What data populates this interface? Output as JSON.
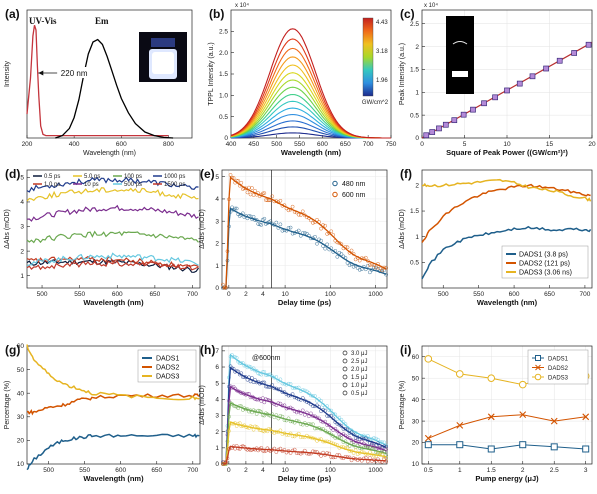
{
  "chart_data": [
    {
      "panel": "(a)",
      "type": "line",
      "xlabel": "Wavelength (nm)",
      "ylabel": "Intensity",
      "xlim": [
        200,
        900
      ],
      "xticks": [
        200,
        400,
        600,
        800
      ],
      "series": [
        {
          "name": "UV-Vis",
          "color": "#c4343c",
          "x": [
            200,
            215,
            225,
            232,
            238,
            244,
            250,
            258,
            268,
            280,
            300,
            340,
            380,
            420,
            500,
            600,
            700,
            800
          ],
          "y": [
            0.2,
            0.5,
            0.85,
            0.94,
            0.9,
            0.6,
            0.35,
            0.1,
            0.03,
            0.02,
            0.02,
            0.02,
            0.02,
            0.02,
            0.02,
            0.02,
            0.02,
            0.02
          ]
        },
        {
          "name": "Em",
          "color": "#000000",
          "x": [
            320,
            350,
            380,
            400,
            420,
            440,
            460,
            480,
            500,
            520,
            540,
            560,
            580,
            600,
            630,
            660,
            700,
            740,
            780,
            820
          ],
          "y": [
            0.0,
            0.02,
            0.08,
            0.17,
            0.32,
            0.52,
            0.7,
            0.8,
            0.82,
            0.78,
            0.68,
            0.56,
            0.44,
            0.33,
            0.21,
            0.12,
            0.05,
            0.02,
            0.005,
            0.0
          ]
        }
      ],
      "annotations": [
        "UV-Vis",
        "Em",
        "220 nm"
      ]
    },
    {
      "panel": "(b)",
      "type": "line",
      "xlabel": "Wavelength (nm)",
      "ylabel": "TPPL Intensity (a.u.)",
      "xlim": [
        400,
        750
      ],
      "xticks": [
        400,
        450,
        500,
        550,
        600,
        650,
        700,
        750
      ],
      "ylim": [
        0,
        30000
      ],
      "yticks": [
        0,
        5000,
        10000,
        15000,
        20000,
        25000
      ],
      "ytick_labels": [
        "0",
        "0.5",
        "1.0",
        "1.5",
        "2.0",
        "2.5"
      ],
      "exponent_label": "x 10⁴",
      "peak_wavelength": 535,
      "width_nm": 70,
      "peaks": [
        1200,
        2600,
        4000,
        5500,
        7000,
        8600,
        10200,
        11900,
        13600,
        15300,
        17100,
        19000,
        21000,
        23200,
        25600
      ],
      "colorbar": {
        "title": "GW/cm^2",
        "ticks": [
          "4.43",
          "3.18",
          "1.96"
        ]
      }
    },
    {
      "panel": "(c)",
      "type": "scatter",
      "xlabel": "Square of Peak Power ((GW/cm²)²)",
      "ylabel": "Peak Intensity (a.u.)",
      "xlim": [
        0,
        20
      ],
      "xticks": [
        0,
        5,
        10,
        15,
        20
      ],
      "ylim": [
        0,
        2.8
      ],
      "yticks": [
        0,
        0.5,
        1,
        1.5,
        2,
        2.5
      ],
      "exponent_label": "x 10⁴",
      "x": [
        0.5,
        1.2,
        2.0,
        2.8,
        3.8,
        4.9,
        6.0,
        7.3,
        8.6,
        10.0,
        11.5,
        13.0,
        14.6,
        16.2,
        17.9,
        19.6
      ],
      "y": [
        0.06,
        0.13,
        0.21,
        0.29,
        0.39,
        0.51,
        0.62,
        0.76,
        0.89,
        1.04,
        1.19,
        1.35,
        1.52,
        1.69,
        1.86,
        2.04
      ],
      "fit": {
        "slope": 0.1045,
        "intercept": 0.0
      }
    },
    {
      "panel": "(d)",
      "type": "line",
      "xlabel": "Wavelength (nm)",
      "ylabel": "ΔAbs (mOD)",
      "xlim": [
        480,
        710
      ],
      "xticks": [
        500,
        550,
        600,
        650,
        700
      ],
      "ylim": [
        0.5,
        5.3
      ],
      "yticks": [
        1,
        2,
        3,
        4,
        5
      ],
      "series": [
        {
          "name": "0.5 ps",
          "color": "#0a1a3a",
          "base": 1.5,
          "amp": 0.2,
          "tilt": -0.3
        },
        {
          "name": "1.0 ps",
          "color": "#c23b22",
          "base": 1.6,
          "amp": 0.2,
          "tilt": -0.3
        },
        {
          "name": "5.0 ps",
          "color": "#e6c229",
          "base": 4.1,
          "amp": 0.4,
          "tilt": 0.0
        },
        {
          "name": "10 ps",
          "color": "#7b2d8e",
          "base": 3.3,
          "amp": 0.4,
          "tilt": 0.1
        },
        {
          "name": "100 ps",
          "color": "#6aa84f",
          "base": 2.4,
          "amp": 0.3,
          "tilt": 0.0
        },
        {
          "name": "500 ps",
          "color": "#66c8e0",
          "base": 1.5,
          "amp": 0.3,
          "tilt": 0.0
        },
        {
          "name": "1000 ps",
          "color": "#1f3b8c",
          "base": 4.5,
          "amp": 0.4,
          "tilt": 0.0
        },
        {
          "name": "1500 ps",
          "color": "#c0392b",
          "base": 1.3,
          "amp": 0.2,
          "tilt": 0.0
        }
      ]
    },
    {
      "panel": "(e)",
      "type": "scatter",
      "xlabel": "Delay time (ps)",
      "ylabel": "ΔAbs (mOD)",
      "xticks": [
        0,
        2,
        4,
        10,
        100,
        1000
      ],
      "split_at": 5,
      "ylim": [
        0,
        5.3
      ],
      "yticks": [
        0,
        1,
        2,
        3,
        4,
        5
      ],
      "series": [
        {
          "name": "480 nm",
          "color": "#1f5f8b",
          "peak": 3.6
        },
        {
          "name": "600 nm",
          "color": "#d35400",
          "peak": 5.0
        }
      ]
    },
    {
      "panel": "(f)",
      "type": "line",
      "xlabel": "Wavelength (nm)",
      "ylabel": "ΔAbs (mOD)",
      "xlim": [
        470,
        710
      ],
      "xticks": [
        500,
        550,
        600,
        650,
        700
      ],
      "ylim": [
        0,
        2.3
      ],
      "yticks": [
        0.5,
        1,
        1.5,
        2
      ],
      "series": [
        {
          "name": "DADS1 (3.8 ps)",
          "color": "#1f5f8b",
          "x": [
            470,
            480,
            500,
            520,
            540,
            560,
            580,
            600,
            620,
            640,
            660,
            680,
            700,
            710
          ],
          "y": [
            0.2,
            0.45,
            0.75,
            0.9,
            1.0,
            1.05,
            1.1,
            1.15,
            1.17,
            1.15,
            1.12,
            1.15,
            1.13,
            1.12
          ]
        },
        {
          "name": "DADS2 (121 ps)",
          "color": "#d35400",
          "x": [
            470,
            480,
            500,
            520,
            540,
            560,
            580,
            600,
            620,
            640,
            660,
            680,
            700,
            710
          ],
          "y": [
            0.9,
            1.1,
            1.4,
            1.6,
            1.75,
            1.85,
            1.92,
            1.97,
            2.0,
            1.97,
            1.93,
            1.88,
            1.82,
            1.8
          ]
        },
        {
          "name": "DADS3 (3.06 ns)",
          "color": "#e6b422",
          "x": [
            470,
            480,
            500,
            520,
            540,
            560,
            580,
            600,
            620,
            640,
            660,
            680,
            700,
            710
          ],
          "y": [
            2.0,
            2.0,
            2.0,
            2.03,
            2.05,
            2.08,
            2.1,
            2.05,
            1.97,
            1.92,
            1.88,
            1.8,
            1.75,
            1.7
          ]
        }
      ]
    },
    {
      "panel": "(g)",
      "type": "line",
      "xlabel": "Wavelength (nm)",
      "ylabel": "Percentage (%)",
      "xlim": [
        470,
        710
      ],
      "xticks": [
        500,
        550,
        600,
        650,
        700
      ],
      "ylim": [
        10,
        60
      ],
      "yticks": [
        10,
        20,
        30,
        40,
        50,
        60
      ],
      "series": [
        {
          "name": "DADS1",
          "color": "#1f5f8b",
          "x": [
            470,
            480,
            500,
            520,
            540,
            560,
            600,
            650,
            700,
            710
          ],
          "y": [
            8,
            12,
            17,
            20,
            21,
            22,
            22,
            22,
            22,
            22
          ]
        },
        {
          "name": "DADS2",
          "color": "#d35400",
          "x": [
            470,
            480,
            500,
            520,
            540,
            560,
            600,
            650,
            700,
            710
          ],
          "y": [
            32,
            32,
            34,
            35,
            37,
            38,
            39,
            39,
            39,
            39
          ]
        },
        {
          "name": "DADS3",
          "color": "#e6b422",
          "x": [
            470,
            480,
            500,
            520,
            540,
            560,
            600,
            650,
            700,
            710
          ],
          "y": [
            60,
            54,
            48,
            44,
            42,
            40,
            39,
            38,
            38,
            38
          ]
        }
      ]
    },
    {
      "panel": "(h)",
      "type": "scatter",
      "xlabel": "Delay time (ps)",
      "ylabel": "ΔAbs (mOD)",
      "annotation": "@600nm",
      "xticks": [
        0,
        2,
        4,
        10,
        100,
        1000
      ],
      "split_at": 5,
      "ylim": [
        0,
        7.3
      ],
      "yticks": [
        0,
        1,
        2,
        3,
        4,
        5,
        6,
        7
      ],
      "series": [
        {
          "name": "3.0 μJ",
          "color": "#66c8e0",
          "peak": 6.8
        },
        {
          "name": "2.5 μJ",
          "color": "#1f3b8c",
          "peak": 6.0
        },
        {
          "name": "2.0 μJ",
          "color": "#7b2d8e",
          "peak": 4.8
        },
        {
          "name": "1.5 μJ",
          "color": "#6aa84f",
          "peak": 3.8
        },
        {
          "name": "1.0 μJ",
          "color": "#e6c229",
          "peak": 2.6
        },
        {
          "name": "0.5 μJ",
          "color": "#c23b22",
          "peak": 1.1
        }
      ]
    },
    {
      "panel": "(i)",
      "type": "line",
      "xlabel": "Pump energy (μJ)",
      "ylabel": "Percentage (%)",
      "x": [
        0.5,
        1.0,
        1.5,
        2.0,
        2.5,
        3.0
      ],
      "xticks": [
        0.5,
        1,
        1.5,
        2,
        2.5,
        3
      ],
      "ylim": [
        10,
        65
      ],
      "yticks": [
        10,
        20,
        30,
        40,
        50,
        60
      ],
      "series": [
        {
          "name": "DADS1",
          "color": "#1f5f8b",
          "marker": "square",
          "y": [
            19,
            19,
            17,
            19,
            18,
            17
          ]
        },
        {
          "name": "DADS2",
          "color": "#d35400",
          "marker": "x",
          "y": [
            22,
            28,
            32,
            33,
            30,
            32
          ]
        },
        {
          "name": "DADS3",
          "color": "#e6b422",
          "marker": "circle",
          "y": [
            59,
            52,
            50,
            47,
            51,
            51
          ]
        }
      ]
    }
  ]
}
